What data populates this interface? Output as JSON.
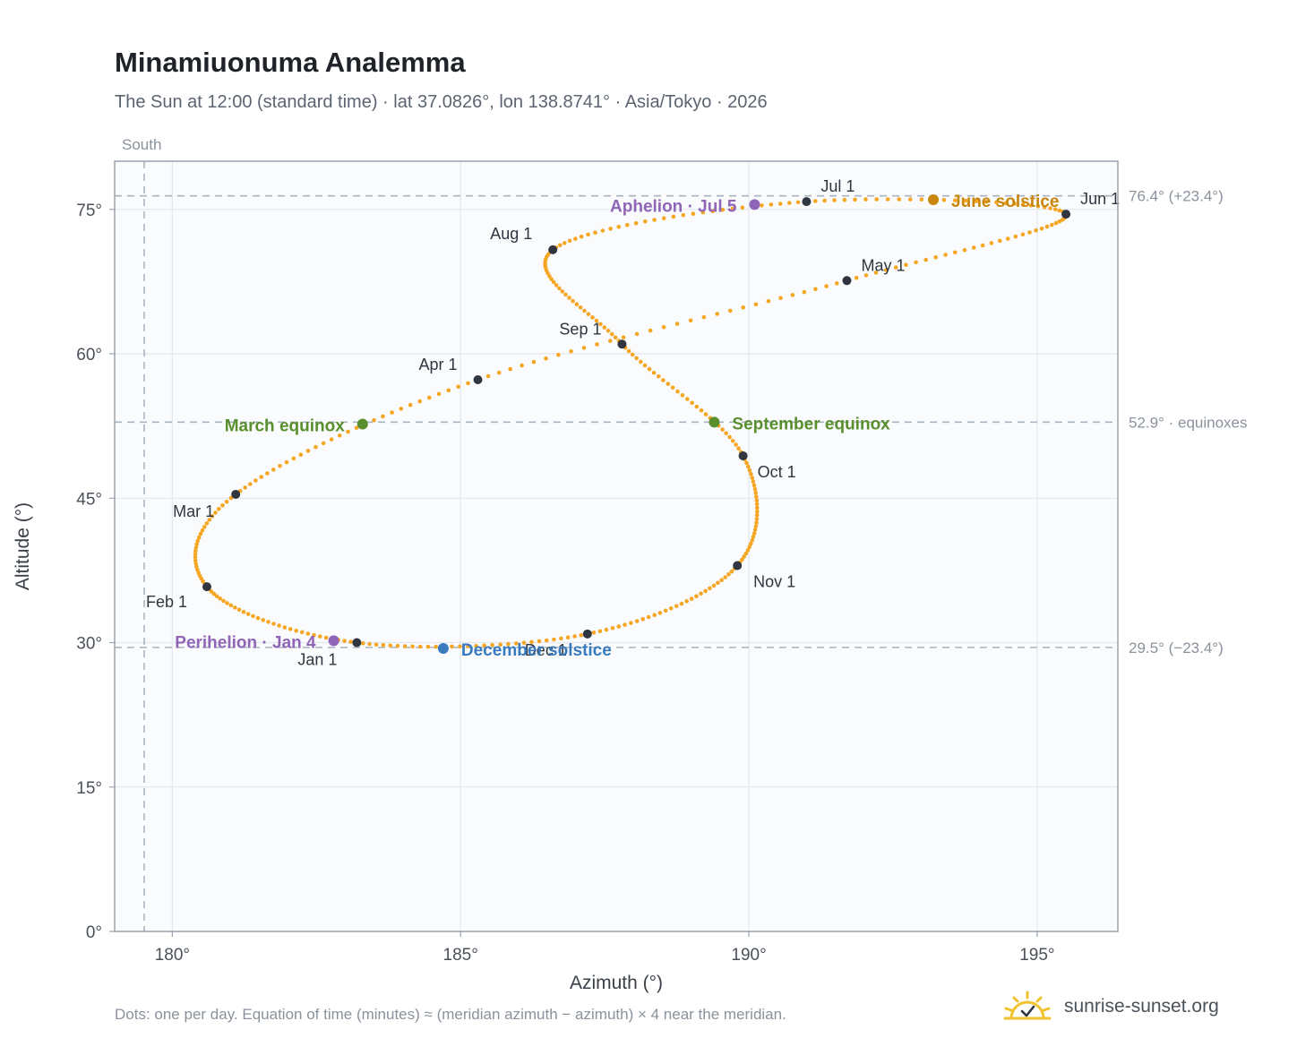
{
  "title": "Minamiuonuma Analemma",
  "subtitle": "The Sun at 12:00 (standard time) · lat 37.0826°, lon 138.8741° · Asia/Tokyo · 2026",
  "footnote": "Dots: one per day. Equation of time (minutes) ≈ (meridian azimuth − azimuth) × 4 near the meridian.",
  "brand": {
    "name": "sunrise-sunset.org",
    "icon": "sun-logo-icon"
  },
  "colors": {
    "path": "#f5a623",
    "month_dot": "#2f3640",
    "march_equinox": "#5a8f2e",
    "september_equinox": "#5a8f2e",
    "june_solstice": "#c8860a",
    "december_solstice": "#3a7bbf",
    "perihelion": "#9065b8",
    "aphelion": "#9065b8",
    "grid": "#e3e8ee",
    "plot_bg": "#f9fbfd",
    "reference": "#aab4c0"
  },
  "chart_data": {
    "type": "scatter",
    "xlabel": "Azimuth (°)",
    "ylabel": "Altitude (°)",
    "xlim": [
      179.0,
      196.4
    ],
    "ylim": [
      0,
      80
    ],
    "xticks": [
      180,
      185,
      190,
      195
    ],
    "xtick_labels": [
      "180°",
      "185°",
      "190°",
      "195°"
    ],
    "yticks": [
      0,
      15,
      30,
      45,
      60,
      75
    ],
    "ytick_labels": [
      "0°",
      "15°",
      "30°",
      "45°",
      "60°",
      "75°"
    ],
    "grid": true,
    "meridian": {
      "azimuth": 180,
      "label": "South"
    },
    "reference_lines": [
      {
        "altitude": 76.4,
        "label": "76.4° (+23.4°)"
      },
      {
        "altitude": 52.9,
        "label": "52.9° · equinoxes"
      },
      {
        "altitude": 29.5,
        "label": "29.5° (−23.4°)"
      }
    ],
    "month_points": [
      {
        "label": "Jan 1",
        "azimuth": 183.2,
        "altitude": 30.0
      },
      {
        "label": "Feb 1",
        "azimuth": 180.6,
        "altitude": 35.8
      },
      {
        "label": "Mar 1",
        "azimuth": 181.1,
        "altitude": 45.4
      },
      {
        "label": "Apr 1",
        "azimuth": 185.3,
        "altitude": 57.3
      },
      {
        "label": "May 1",
        "azimuth": 191.7,
        "altitude": 67.6
      },
      {
        "label": "Jun 1",
        "azimuth": 195.5,
        "altitude": 74.5
      },
      {
        "label": "Jul 1",
        "azimuth": 191.0,
        "altitude": 75.8
      },
      {
        "label": "Aug 1",
        "azimuth": 186.6,
        "altitude": 70.8
      },
      {
        "label": "Sep 1",
        "azimuth": 187.8,
        "altitude": 61.0
      },
      {
        "label": "Oct 1",
        "azimuth": 189.9,
        "altitude": 49.4
      },
      {
        "label": "Nov 1",
        "azimuth": 189.8,
        "altitude": 38.0
      },
      {
        "label": "Dec 1",
        "azimuth": 187.2,
        "altitude": 30.9
      }
    ],
    "events": [
      {
        "label": "March equinox",
        "azimuth": 183.3,
        "altitude": 52.7,
        "color_key": "march_equinox"
      },
      {
        "label": "June solstice",
        "azimuth": 193.2,
        "altitude": 76.0,
        "color_key": "june_solstice"
      },
      {
        "label": "September equinox",
        "azimuth": 189.4,
        "altitude": 52.9,
        "color_key": "september_equinox"
      },
      {
        "label": "December solstice",
        "azimuth": 184.7,
        "altitude": 29.4,
        "color_key": "december_solstice"
      },
      {
        "label": "Perihelion · Jan 4",
        "azimuth": 182.8,
        "altitude": 30.2,
        "color_key": "perihelion"
      },
      {
        "label": "Aphelion · Jul 5",
        "azimuth": 190.1,
        "altitude": 75.5,
        "color_key": "aphelion"
      }
    ]
  }
}
